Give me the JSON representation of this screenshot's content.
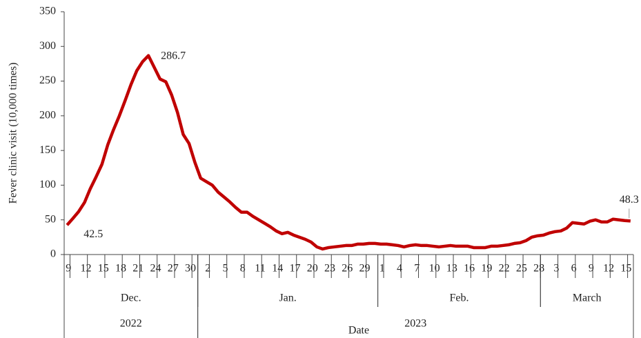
{
  "chart_data": {
    "type": "line",
    "x_label": "Date",
    "y_label": "Fever clinic visit (10,000 times)",
    "categories": [
      "9",
      null,
      null,
      "12",
      null,
      null,
      "15",
      null,
      null,
      "18",
      null,
      null,
      "21",
      null,
      null,
      "24",
      null,
      null,
      "27",
      null,
      null,
      "30",
      null,
      null,
      "2",
      null,
      null,
      "5",
      null,
      null,
      "8",
      null,
      null,
      "11",
      null,
      null,
      "14",
      null,
      null,
      "17",
      null,
      null,
      "20",
      null,
      null,
      "23",
      null,
      null,
      "26",
      null,
      null,
      "29",
      null,
      null,
      "1",
      null,
      null,
      "4",
      null,
      null,
      "7",
      null,
      null,
      "10",
      null,
      null,
      "13",
      null,
      null,
      "16",
      null,
      null,
      "19",
      null,
      null,
      "22",
      null,
      null,
      "25",
      null,
      null,
      "28",
      null,
      null,
      "3",
      null,
      null,
      "6",
      null,
      null,
      "9",
      null,
      null,
      "12",
      null,
      null,
      "15",
      null
    ],
    "month_groups": [
      {
        "label": "Dec.",
        "size": 23
      },
      {
        "label": "Jan.",
        "size": 31
      },
      {
        "label": "Feb.",
        "size": 28
      },
      {
        "label": "March",
        "size": 16
      }
    ],
    "year_groups": [
      {
        "label": "2022",
        "size": 23
      },
      {
        "label": "2023",
        "size": 75
      }
    ],
    "series": [
      {
        "name": "Fever clinic visit",
        "color": "#c00000",
        "values": [
          42.5,
          52,
          62,
          75,
          95,
          112,
          130,
          158,
          180,
          200,
          222,
          245,
          265,
          278,
          286.7,
          270,
          253,
          249,
          230,
          205,
          173,
          160,
          133,
          110,
          105,
          100,
          90,
          83,
          76,
          68,
          61,
          61,
          55,
          50,
          45,
          40,
          34,
          30,
          32,
          28,
          25,
          22,
          18,
          11,
          8,
          10,
          11,
          12,
          13,
          13,
          15,
          15,
          16,
          16,
          15,
          15,
          14,
          13,
          11,
          13,
          14,
          13,
          13,
          12,
          11,
          12,
          13,
          12,
          12,
          12,
          10,
          10,
          10,
          12,
          12,
          13,
          14,
          16,
          17,
          20,
          25,
          27,
          28,
          31,
          33,
          34,
          38,
          46,
          45,
          44,
          48,
          50,
          47,
          47,
          51,
          50,
          49,
          48.3
        ],
        "value_labels": [
          "42.5",
          null,
          null,
          null,
          null,
          null,
          null,
          null,
          null,
          null,
          null,
          null,
          null,
          null,
          "286.7",
          null,
          null,
          null,
          null,
          null,
          null,
          null,
          null,
          null,
          null,
          null,
          null,
          null,
          null,
          null,
          null,
          null,
          null,
          null,
          null,
          null,
          null,
          null,
          null,
          null,
          null,
          null,
          null,
          null,
          null,
          null,
          null,
          null,
          null,
          null,
          null,
          null,
          null,
          null,
          null,
          null,
          null,
          null,
          null,
          null,
          null,
          null,
          null,
          null,
          null,
          null,
          null,
          null,
          null,
          null,
          null,
          null,
          null,
          null,
          null,
          null,
          null,
          null,
          null,
          null,
          null,
          null,
          null,
          null,
          null,
          null,
          null,
          null,
          null,
          null,
          null,
          null,
          null,
          null,
          null,
          null,
          null,
          "48.3"
        ]
      }
    ],
    "ylim": [
      0,
      350
    ],
    "yticks": [
      0,
      50,
      100,
      150,
      200,
      250,
      300,
      350
    ],
    "grid": false
  }
}
